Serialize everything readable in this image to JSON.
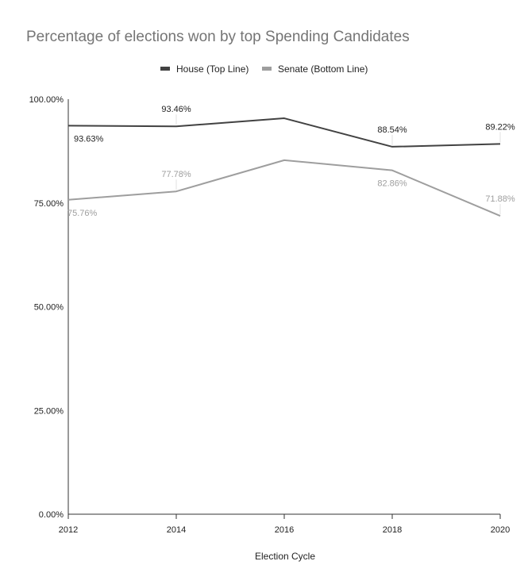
{
  "chart_data": {
    "type": "line",
    "title": "Percentage of elections won by top Spending Candidates",
    "xlabel": "Election Cycle",
    "ylabel": "",
    "categories": [
      "2012",
      "2014",
      "2016",
      "2018",
      "2020"
    ],
    "ylim": [
      0,
      100
    ],
    "yticks": [
      0,
      25,
      50,
      75,
      100
    ],
    "ytick_labels": [
      "0.00%",
      "25.00%",
      "50.00%",
      "75.00%",
      "100.00%"
    ],
    "legend_position": "top",
    "grid": false,
    "series": [
      {
        "name": "House (Top Line)",
        "color": "#424242",
        "values": [
          93.63,
          93.46,
          95.4,
          88.54,
          89.22
        ],
        "labels": [
          "93.63%",
          "93.46%",
          null,
          "88.54%",
          "89.22%"
        ],
        "label_pos": [
          "below",
          "above",
          null,
          "above",
          "above"
        ]
      },
      {
        "name": "Senate (Bottom Line)",
        "color": "#9e9e9e",
        "values": [
          75.76,
          77.78,
          85.3,
          82.86,
          71.88
        ],
        "labels": [
          "75.76%",
          "77.78%",
          null,
          "82.86%",
          "71.88%"
        ],
        "label_pos": [
          "below",
          "above",
          null,
          "below",
          "above"
        ]
      }
    ]
  }
}
